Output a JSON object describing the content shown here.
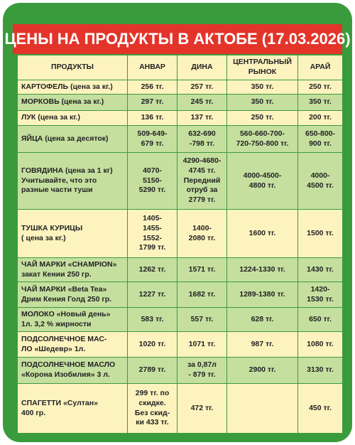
{
  "header": {
    "title": "ЦЕНЫ НА ПРОДУКТЫ В АКТОБЕ (17.03.2026)"
  },
  "table": {
    "columns": [
      "ПРОДУКТЫ",
      "АНВАР",
      "ДИНА",
      "ЦЕНТРАЛЬНЫЙ\nРЫНОК",
      "АРАЙ"
    ],
    "rows": [
      [
        "КАРТОФЕЛЬ (цена за кг.)",
        "256 тг.",
        "257 тг.",
        "350 тг.",
        "250 тг."
      ],
      [
        "МОРКОВЬ (цена за кг.)",
        "297 тг.",
        "245 тг.",
        "350 тг.",
        "350 тг."
      ],
      [
        "ЛУК (цена за кг.)",
        "136 тг.",
        "137 тг.",
        "250 тг.",
        "200 тг."
      ],
      [
        "ЯЙЦА (цена за десяток)",
        "509-649-\n679 тг.",
        "632-690\n-798 тг.",
        "560-660-700-\n720-750-800 тг.",
        "650-800-\n900 тг."
      ],
      [
        "ГОВЯДИНА (цена за 1 кг)\nУчитывайте, что это\nразные части туши",
        "4070-\n5150-\n5290 тг.",
        "4290-4680-\n4745 тг.\nПередний\nотруб за\n2779 тг.",
        "4000-4500-\n4800 тг.",
        "4000-\n4500 тг."
      ],
      [
        "ТУШКА КУРИЦЫ\n( цена за кг.)",
        "1405-\n1455-\n1552-\n1799 тг.",
        "1400-\n2080 тг.",
        "1600 тг.",
        "1500 тг."
      ],
      [
        "ЧАЙ МАРКИ «CHAMPION»\nзакат Кении 250 гр.",
        "1262 тг.",
        "1571 тг.",
        "1224-1330 тг.",
        "1430 тг."
      ],
      [
        "ЧАЙ МАРКИ «Beta Tea»\nДрим Кения Голд 250 гр.",
        "1227 тг.",
        "1682 тг.",
        "1289-1380 тг.",
        "1420-\n1530 тг."
      ],
      [
        "МОЛОКО «Новый день»\n1л. 3,2 % жирности",
        "583 тг.",
        "557 тг.",
        "628 тг.",
        "650 тг."
      ],
      [
        "ПОДСОЛНЕЧНОЕ МАС-\nЛО «Шедевр» 1л.",
        "1020 тг.",
        "1071 тг.",
        "987 тг.",
        "1080 тг."
      ],
      [
        "ПОДСОЛНЕЧНОЕ МАСЛО\n«Корона Изобилия» 3 л.",
        "2789 тг.",
        "за 0,87л\n- 879 тг.",
        "2900 тг.",
        "3130 тг."
      ],
      [
        "СПАГЕТТИ «Султан»\n400 гр.",
        "299 тг.  по\nскидке.\nБез скид-\nки 433 тг.",
        "472 тг.",
        "",
        "450 тг."
      ]
    ]
  }
}
